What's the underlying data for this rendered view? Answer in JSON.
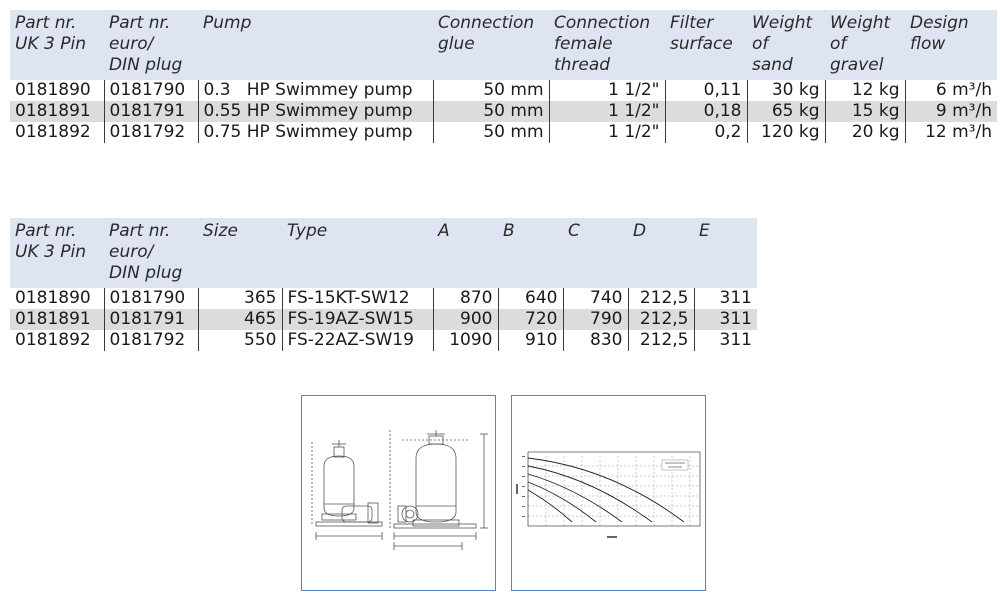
{
  "pump_table": {
    "headers": [
      [
        "Part nr.",
        "UK 3 Pin"
      ],
      [
        "Part nr.",
        "euro/",
        "DIN plug"
      ],
      [
        "Pump"
      ],
      [
        "Connection",
        "glue"
      ],
      [
        "Connection",
        "female",
        "thread"
      ],
      [
        "Filter",
        "surface"
      ],
      [
        "Weight",
        "of",
        "sand"
      ],
      [
        "Weight",
        "of",
        "gravel"
      ],
      [
        "Design",
        "flow"
      ]
    ],
    "rows": [
      [
        "0181890",
        "0181790",
        "0.3   HP Swimmey pump",
        "50 mm",
        "1 1/2\"",
        "0,11",
        "30 kg",
        "12 kg",
        "6 m³/h"
      ],
      [
        "0181891",
        "0181791",
        "0.55 HP Swimmey pump",
        "50 mm",
        "1 1/2\"",
        "0,18",
        "65 kg",
        "15 kg",
        "9 m³/h"
      ],
      [
        "0181892",
        "0181792",
        "0.75 HP Swimmey pump",
        "50 mm",
        "1 1/2\"",
        "0,2",
        "120 kg",
        "20 kg",
        "12 m³/h"
      ]
    ]
  },
  "size_table": {
    "headers": [
      [
        "Part nr.",
        "UK 3 Pin"
      ],
      [
        "Part nr.",
        "euro/",
        "DIN plug"
      ],
      [
        "Size"
      ],
      [
        "Type"
      ],
      [
        "A"
      ],
      [
        "B"
      ],
      [
        "C"
      ],
      [
        "D"
      ],
      [
        "E"
      ]
    ],
    "rows": [
      [
        "0181890",
        "0181790",
        "365",
        "FS-15KT-SW12",
        "870",
        "640",
        "740",
        "212,5",
        "311"
      ],
      [
        "0181891",
        "0181791",
        "465",
        "FS-19AZ-SW15",
        "900",
        "720",
        "790",
        "212,5",
        "311"
      ],
      [
        "0181892",
        "0181792",
        "550",
        "FS-22AZ-SW19",
        "1090",
        "910",
        "830",
        "212,5",
        "311"
      ]
    ]
  },
  "images": {
    "dimension_drawing": "sand filter and pump dimension drawing",
    "pump_curve": "pump performance curve graph"
  }
}
